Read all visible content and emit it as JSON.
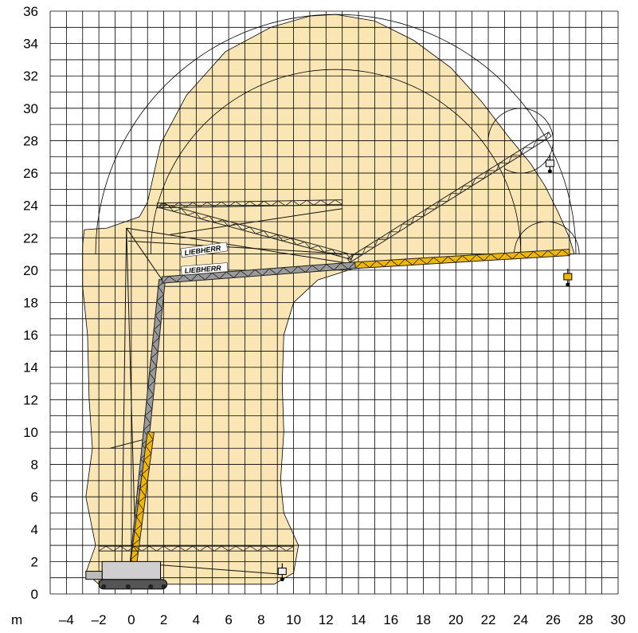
{
  "chart_data": {
    "type": "diagram",
    "x_unit_label": "m",
    "xlim": [
      -5,
      30
    ],
    "ylim": [
      0,
      36
    ],
    "x_ticks": [
      -4,
      -2,
      0,
      2,
      4,
      6,
      8,
      10,
      12,
      14,
      16,
      18,
      20,
      22,
      24,
      26,
      28,
      30
    ],
    "x_tick_labels": [
      "–4",
      "–2",
      "0",
      "2",
      "4",
      "6",
      "8",
      "10",
      "12",
      "14",
      "16",
      "18",
      "20",
      "22",
      "24",
      "26",
      "28",
      "30"
    ],
    "y_ticks": [
      0,
      2,
      4,
      6,
      8,
      10,
      12,
      14,
      16,
      18,
      20,
      22,
      24,
      26,
      28,
      30,
      32,
      34,
      36
    ],
    "y_tick_labels": [
      "0",
      "2",
      "4",
      "6",
      "8",
      "10",
      "12",
      "14",
      "16",
      "18",
      "20",
      "22",
      "24",
      "26",
      "28",
      "30",
      "32",
      "34",
      "36"
    ],
    "grid": true,
    "minor_grid_step": 1,
    "brand_label": "LIEBHERR",
    "colors": {
      "envelope_fill": "#f9e6b4",
      "grid": "#000000",
      "boom_yellow": "#f2b705",
      "boom_grey": "#9a9a9a",
      "lattice": "#222222"
    },
    "working_envelope": [
      [
        -2.9,
        22.5
      ],
      [
        -1.5,
        22.6
      ],
      [
        0.5,
        23.3
      ],
      [
        1.0,
        24.2
      ],
      [
        1.8,
        27.8
      ],
      [
        3.4,
        30.8
      ],
      [
        5.8,
        33.5
      ],
      [
        8.6,
        35.0
      ],
      [
        11.0,
        35.7
      ],
      [
        12.6,
        35.8
      ],
      [
        15.0,
        35.4
      ],
      [
        17.4,
        34.2
      ],
      [
        19.7,
        32.5
      ],
      [
        21.6,
        30.4
      ],
      [
        23.2,
        28.3
      ],
      [
        24.6,
        26.6
      ],
      [
        25.5,
        25.2
      ],
      [
        26.3,
        23.6
      ],
      [
        27.0,
        22.0
      ],
      [
        27.3,
        21.0
      ],
      [
        14.0,
        20.2
      ],
      [
        11.5,
        19.4
      ],
      [
        10.0,
        18.0
      ],
      [
        9.4,
        16.0
      ],
      [
        9.3,
        13.0
      ],
      [
        9.4,
        10.0
      ],
      [
        9.2,
        7.0
      ],
      [
        9.4,
        5.0
      ],
      [
        10.3,
        3.0
      ],
      [
        10.0,
        1.3
      ],
      [
        8.8,
        0.6
      ],
      [
        2.0,
        0.6
      ],
      [
        -2.0,
        0.6
      ],
      [
        -2.8,
        1.3
      ],
      [
        -2.2,
        3.0
      ],
      [
        -2.8,
        6.0
      ],
      [
        -2.4,
        9.0
      ],
      [
        -2.6,
        12.0
      ],
      [
        -2.7,
        16.0
      ],
      [
        -3.0,
        19.0
      ],
      [
        -3.0,
        21.5
      ]
    ],
    "radius_arcs": [
      {
        "center": [
          12.6,
          21.0
        ],
        "radius": 14.8,
        "from_deg": 0,
        "to_deg": 180
      },
      {
        "center": [
          12.6,
          21.0
        ],
        "radius": 11.4,
        "from_deg": 0,
        "to_deg": 180
      },
      {
        "center": [
          24.0,
          28.0
        ],
        "radius": 2.0,
        "from_deg": -120,
        "to_deg": 180
      },
      {
        "center": [
          25.6,
          21.0
        ],
        "radius": 2.0,
        "from_deg": 0,
        "to_deg": 180
      }
    ],
    "booms": [
      {
        "name": "main-boom",
        "from": [
          0.0,
          0.8
        ],
        "to": [
          1.9,
          19.4
        ],
        "color": "grey"
      },
      {
        "name": "main-boom-lower",
        "from": [
          0.0,
          0.8
        ],
        "to": [
          1.2,
          10.0
        ],
        "color": "yellow"
      },
      {
        "name": "horizontal-jib",
        "from": [
          1.9,
          19.4
        ],
        "to": [
          13.8,
          20.3
        ],
        "color": "grey"
      },
      {
        "name": "jib-extension",
        "from": [
          13.8,
          20.3
        ],
        "to": [
          27.0,
          21.1
        ],
        "color": "yellow"
      },
      {
        "name": "luffed-jib",
        "from": [
          13.4,
          20.6
        ],
        "to": [
          25.8,
          28.4
        ],
        "color": "lattice"
      },
      {
        "name": "upper-jib-stowed",
        "from": [
          1.6,
          24.0
        ],
        "to": [
          13.0,
          24.2
        ],
        "color": "lattice"
      },
      {
        "name": "folding-jib",
        "from": [
          1.8,
          24.0
        ],
        "to": [
          13.6,
          20.8
        ],
        "color": "lattice"
      },
      {
        "name": "ground-jib",
        "from": [
          -2.0,
          2.8
        ],
        "to": [
          10.0,
          2.8
        ],
        "color": "lattice"
      }
    ],
    "guy_lines": [
      [
        [
          -0.3,
          22.6
        ],
        [
          1.9,
          19.4
        ]
      ],
      [
        [
          -0.3,
          22.6
        ],
        [
          13.5,
          20.4
        ]
      ],
      [
        [
          -0.3,
          22.6
        ],
        [
          -0.6,
          0.8
        ]
      ],
      [
        [
          -0.3,
          22.6
        ],
        [
          0.3,
          1.2
        ]
      ],
      [
        [
          -0.2,
          21.8
        ],
        [
          13.3,
          21.0
        ]
      ],
      [
        [
          2.4,
          22.2
        ],
        [
          13.0,
          23.8
        ]
      ],
      [
        [
          -1.3,
          9.0
        ],
        [
          1.0,
          9.6
        ]
      ],
      [
        [
          -1.0,
          2.0
        ],
        [
          9.5,
          1.2
        ]
      ]
    ],
    "hooks": [
      [
        26.9,
        19.6
      ],
      [
        25.8,
        26.6
      ],
      [
        9.3,
        1.4
      ]
    ]
  }
}
